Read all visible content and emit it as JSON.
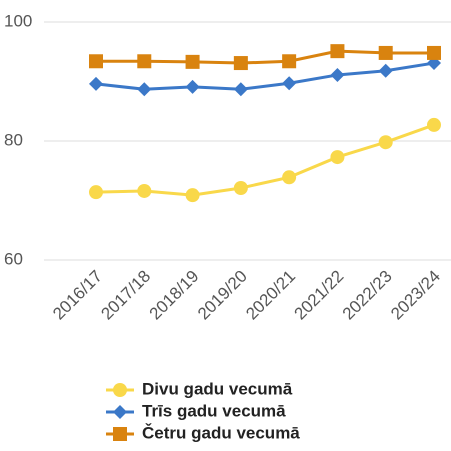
{
  "chart_data": {
    "type": "line",
    "categories": [
      "2016/17",
      "2017/18",
      "2018/19",
      "2019/20",
      "2020/21",
      "2021/22",
      "2022/23",
      "2023/24"
    ],
    "series": [
      {
        "name": "Divu gadu vecumā",
        "color": "#f9d84a",
        "marker": "circle",
        "values": [
          71.4,
          71.6,
          70.9,
          72.1,
          73.9,
          77.3,
          79.8,
          82.7
        ]
      },
      {
        "name": "Trīs gadu vecumā",
        "color": "#3b78c8",
        "marker": "diamond",
        "values": [
          89.6,
          88.7,
          89.1,
          88.7,
          89.7,
          91.1,
          91.8,
          93.1
        ]
      },
      {
        "name": "Četru gadu vecumā",
        "color": "#d9830f",
        "marker": "square",
        "values": [
          93.4,
          93.4,
          93.3,
          93.1,
          93.4,
          95.1,
          94.8,
          94.8
        ]
      }
    ],
    "ylim": [
      60,
      100
    ],
    "yticks": [
      60,
      80,
      100
    ],
    "grid": true
  }
}
